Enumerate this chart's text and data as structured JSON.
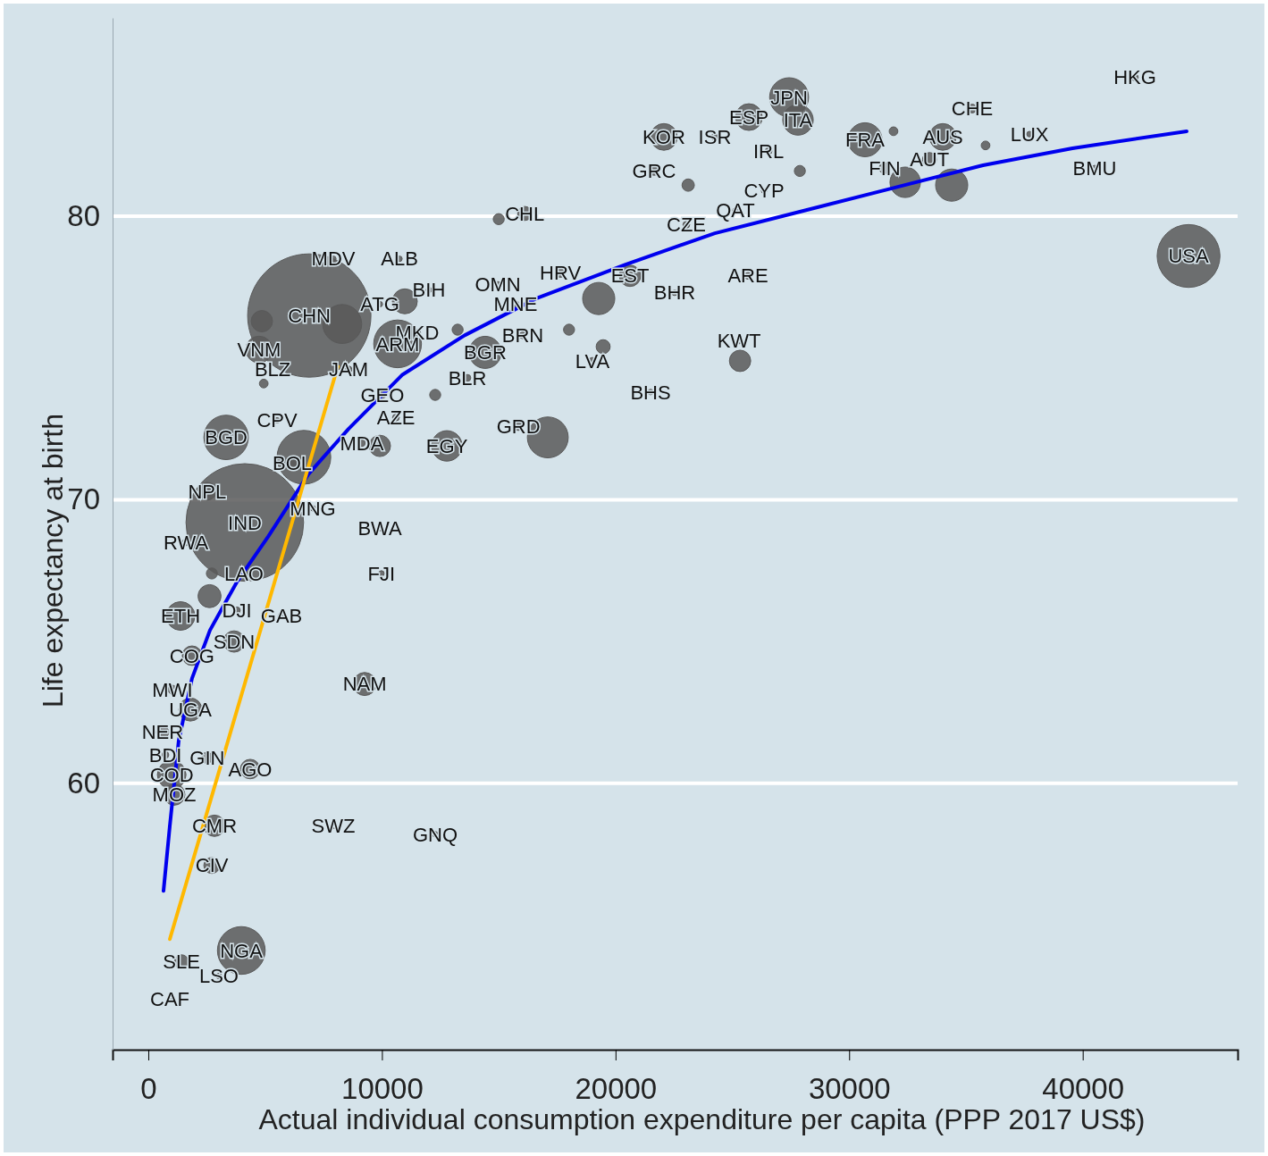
{
  "chart_data": {
    "type": "bubble",
    "xlabel": "Actual individual consumption expenditure per capita (PPP 2017 US$)",
    "ylabel": "Life expectancy at birth",
    "xlim": [
      -1530,
      46630
    ],
    "ylim": [
      50.6,
      87.0
    ],
    "xticks": [
      0,
      10000,
      20000,
      30000,
      40000
    ],
    "yticks": [
      60,
      70,
      80
    ],
    "grid": "y",
    "series": [
      {
        "marker": "circle",
        "color": "#595959",
        "x": [
          920,
          3020,
          1420,
          3980,
          2720,
          2830,
          1110,
          1000,
          4360,
          730,
          2520,
          610,
          1800,
          1030,
          1870,
          3670,
          2620,
          1380,
          3790,
          5700,
          4090,
          2720,
          1610,
          4130,
          2520,
          3330,
          5510,
          6660,
          6160,
          7040,
          8570,
          4940,
          4740,
          4860,
          7920,
          6890,
          8300,
          10750,
          9910,
          12010,
          10980,
          11510,
          10670,
          10020,
          10600,
          9140,
          9910,
          12780,
          13660,
          14420,
          16030,
          15720,
          14960,
          16110,
          15000,
          17640,
          20620,
          19280,
          22530,
          19010,
          19470,
          21500,
          15840,
          17100,
          18010,
          13240,
          12280,
          23030,
          25130,
          25670,
          25290,
          25330,
          26360,
          26550,
          27890,
          21650,
          23110,
          22070,
          24250,
          25710,
          27430,
          27810,
          30680,
          31900,
          31520,
          33440,
          34010,
          32400,
          34390,
          35270,
          37720,
          35840,
          40510,
          42230,
          44530,
          9910,
          9980,
          9260,
          7920,
          12280
        ],
        "values": [
          52.4,
          53.2,
          53.7,
          54.1,
          57.1,
          58.5,
          59.6,
          60.3,
          60.5,
          61.0,
          60.9,
          61.8,
          62.6,
          63.3,
          64.5,
          65.0,
          66.6,
          65.9,
          66.1,
          65.9,
          67.4,
          67.4,
          68.5,
          69.2,
          70.3,
          72.2,
          72.8,
          71.5,
          71.3,
          69.7,
          74.6,
          74.1,
          75.3,
          76.3,
          78.5,
          76.5,
          76.2,
          78.5,
          76.9,
          77.4,
          77.0,
          75.9,
          75.5,
          73.7,
          72.9,
          72.0,
          71.9,
          71.9,
          74.3,
          75.2,
          75.8,
          76.9,
          77.6,
          80.1,
          79.9,
          78.0,
          77.9,
          77.1,
          77.3,
          74.9,
          75.4,
          73.8,
          72.6,
          72.2,
          76.0,
          76.0,
          73.7,
          79.7,
          80.2,
          77.9,
          75.6,
          74.9,
          80.9,
          82.3,
          81.6,
          81.6,
          81.1,
          82.8,
          82.8,
          83.5,
          84.2,
          83.4,
          82.7,
          83.0,
          81.7,
          82.0,
          82.8,
          81.2,
          81.1,
          83.8,
          82.9,
          82.5,
          81.7,
          84.9,
          78.6,
          69.0,
          67.4,
          63.5,
          58.5,
          58.2
        ],
        "sizes": [
          0.002,
          0.002,
          0.013,
          0.15,
          0.017,
          0.03,
          0.03,
          0.054,
          0.025,
          0.003,
          0.008,
          0.01,
          0.035,
          0.005,
          0.025,
          0.03,
          0.035,
          0.054,
          0.003,
          0.003,
          0.003,
          0.008,
          0.003,
          0.91,
          0.021,
          0.13,
          0.002,
          0.19,
          0.005,
          0.002,
          0.003,
          0.005,
          0.047,
          0.03,
          0.002,
          1,
          0.1,
          0.002,
          0.002,
          0.002,
          0.041,
          0.003,
          0.15,
          0.003,
          0.003,
          0.003,
          0.03,
          0.061,
          0.003,
          0.068,
          0.003,
          0.003,
          0.002,
          0.013,
          0.008,
          0.005,
          0.03,
          0.068,
          0.002,
          0.003,
          0.013,
          0.002,
          0.005,
          0.11,
          0.008,
          0.008,
          0.008,
          0.003,
          0.002,
          0.003,
          0.002,
          0.03,
          0.002,
          0.003,
          0.008,
          0.005,
          0.01,
          0.047,
          0.003,
          0.047,
          0.1,
          0.061,
          0.076,
          0.005,
          0.008,
          0.013,
          0.047,
          0.061,
          0.068,
          0.005,
          0.002,
          0.005,
          0.002,
          0.003,
          0.26,
          0.002,
          0.002,
          0.035,
          0.002,
          0.002
        ]
      },
      {
        "type": "line",
        "marker": "none",
        "color": "#0000ee",
        "x": [
          650,
          920,
          1300,
          1870,
          2640,
          3790,
          5130,
          6850,
          8570,
          10860,
          13540,
          16600,
          20430,
          24250,
          28080,
          31900,
          35730,
          39560,
          44450
        ],
        "values": [
          56.2,
          58.5,
          61.5,
          63.7,
          65.4,
          67.1,
          68.7,
          70.9,
          72.5,
          74.4,
          75.8,
          77.1,
          78.3,
          79.4,
          80.2,
          81.0,
          81.8,
          82.4,
          83.0
        ]
      },
      {
        "type": "line",
        "marker": "none",
        "color": "#ffb800",
        "x": [
          920,
          8110
        ],
        "values": [
          54.5,
          74.7
        ]
      }
    ],
    "annotations": [
      {
        "text": "CAF",
        "x": 920,
        "y": 52.4
      },
      {
        "text": "LSO",
        "x": 3020,
        "y": 53.2
      },
      {
        "text": "SLE",
        "x": 1420,
        "y": 53.7
      },
      {
        "text": "NGA",
        "x": 3980,
        "y": 54.1
      },
      {
        "text": "CIV",
        "x": 2720,
        "y": 57.1
      },
      {
        "text": "CMR",
        "x": 2830,
        "y": 58.5
      },
      {
        "text": "MOZ",
        "x": 1110,
        "y": 59.6
      },
      {
        "text": "COD",
        "x": 1000,
        "y": 60.3
      },
      {
        "text": "AGO",
        "x": 4360,
        "y": 60.5
      },
      {
        "text": "BDI",
        "x": 730,
        "y": 61.0
      },
      {
        "text": "GIN",
        "x": 2520,
        "y": 60.9
      },
      {
        "text": "NER",
        "x": 610,
        "y": 61.8
      },
      {
        "text": "UGA",
        "x": 1800,
        "y": 62.6
      },
      {
        "text": "MWI",
        "x": 1030,
        "y": 63.3
      },
      {
        "text": "COG",
        "x": 1870,
        "y": 64.5
      },
      {
        "text": "SDN",
        "x": 3670,
        "y": 65.0
      },
      {
        "text": "ETH",
        "x": 1380,
        "y": 65.9
      },
      {
        "text": "DJI",
        "x": 3790,
        "y": 66.1
      },
      {
        "text": "GAB",
        "x": 5700,
        "y": 65.9
      },
      {
        "text": "LAO",
        "x": 4090,
        "y": 67.4
      },
      {
        "text": "RWA",
        "x": 1610,
        "y": 68.5
      },
      {
        "text": "IND",
        "x": 4130,
        "y": 69.2
      },
      {
        "text": "NPL",
        "x": 2520,
        "y": 70.3
      },
      {
        "text": "BGD",
        "x": 3330,
        "y": 72.2
      },
      {
        "text": "CPV",
        "x": 5510,
        "y": 72.8
      },
      {
        "text": "BOL",
        "x": 6160,
        "y": 71.3
      },
      {
        "text": "MNG",
        "x": 7040,
        "y": 69.7
      },
      {
        "text": "JAM",
        "x": 8570,
        "y": 74.6
      },
      {
        "text": "BLZ",
        "x": 5320,
        "y": 74.6
      },
      {
        "text": "VNM",
        "x": 4740,
        "y": 75.3
      },
      {
        "text": "MDV",
        "x": 7920,
        "y": 78.5
      },
      {
        "text": "CHN",
        "x": 6890,
        "y": 76.5
      },
      {
        "text": "ALB",
        "x": 10750,
        "y": 78.5
      },
      {
        "text": "ATG",
        "x": 9910,
        "y": 76.9
      },
      {
        "text": "BIH",
        "x": 12010,
        "y": 77.4
      },
      {
        "text": "MKD",
        "x": 11510,
        "y": 75.9
      },
      {
        "text": "ARM",
        "x": 10670,
        "y": 75.5
      },
      {
        "text": "GEO",
        "x": 10020,
        "y": 73.7
      },
      {
        "text": "AZE",
        "x": 10600,
        "y": 72.9
      },
      {
        "text": "MDA",
        "x": 9140,
        "y": 72.0
      },
      {
        "text": "EGY",
        "x": 12780,
        "y": 71.9
      },
      {
        "text": "BLR",
        "x": 13660,
        "y": 74.3
      },
      {
        "text": "BGR",
        "x": 14420,
        "y": 75.2
      },
      {
        "text": "BRN",
        "x": 16030,
        "y": 75.8
      },
      {
        "text": "MNE",
        "x": 15720,
        "y": 76.9
      },
      {
        "text": "OMN",
        "x": 14960,
        "y": 77.6
      },
      {
        "text": "CHL",
        "x": 16110,
        "y": 80.1
      },
      {
        "text": "HRV",
        "x": 17640,
        "y": 78.0
      },
      {
        "text": "EST",
        "x": 20620,
        "y": 77.9
      },
      {
        "text": "BHR",
        "x": 22530,
        "y": 77.3
      },
      {
        "text": "LVA",
        "x": 19010,
        "y": 74.9
      },
      {
        "text": "BHS",
        "x": 21500,
        "y": 73.8
      },
      {
        "text": "GRD",
        "x": 15840,
        "y": 72.6
      },
      {
        "text": "CZE",
        "x": 23030,
        "y": 79.7
      },
      {
        "text": "QAT",
        "x": 25130,
        "y": 80.2
      },
      {
        "text": "ARE",
        "x": 25670,
        "y": 77.9
      },
      {
        "text": "KWT",
        "x": 25290,
        "y": 75.6
      },
      {
        "text": "CYP",
        "x": 26360,
        "y": 80.9
      },
      {
        "text": "IRL",
        "x": 26550,
        "y": 82.3
      },
      {
        "text": "GRC",
        "x": 21650,
        "y": 81.6
      },
      {
        "text": "KOR",
        "x": 22070,
        "y": 82.8
      },
      {
        "text": "ISR",
        "x": 24250,
        "y": 82.8
      },
      {
        "text": "ESP",
        "x": 25710,
        "y": 83.5
      },
      {
        "text": "JPN",
        "x": 27430,
        "y": 84.2
      },
      {
        "text": "ITA",
        "x": 27810,
        "y": 83.4
      },
      {
        "text": "FRA",
        "x": 30680,
        "y": 82.7
      },
      {
        "text": "FIN",
        "x": 31520,
        "y": 81.7
      },
      {
        "text": "AUT",
        "x": 33440,
        "y": 82.0
      },
      {
        "text": "AUS",
        "x": 34010,
        "y": 82.8
      },
      {
        "text": "CHE",
        "x": 35270,
        "y": 83.8
      },
      {
        "text": "LUX",
        "x": 37720,
        "y": 82.9
      },
      {
        "text": "BMU",
        "x": 40510,
        "y": 81.7
      },
      {
        "text": "HKG",
        "x": 42230,
        "y": 84.9
      },
      {
        "text": "USA",
        "x": 44530,
        "y": 78.6
      },
      {
        "text": "BWA",
        "x": 9910,
        "y": 69.0
      },
      {
        "text": "FJI",
        "x": 9980,
        "y": 67.4
      },
      {
        "text": "NAM",
        "x": 9260,
        "y": 63.5
      },
      {
        "text": "SWZ",
        "x": 7920,
        "y": 58.5
      },
      {
        "text": "GNQ",
        "x": 12280,
        "y": 58.2
      }
    ]
  }
}
